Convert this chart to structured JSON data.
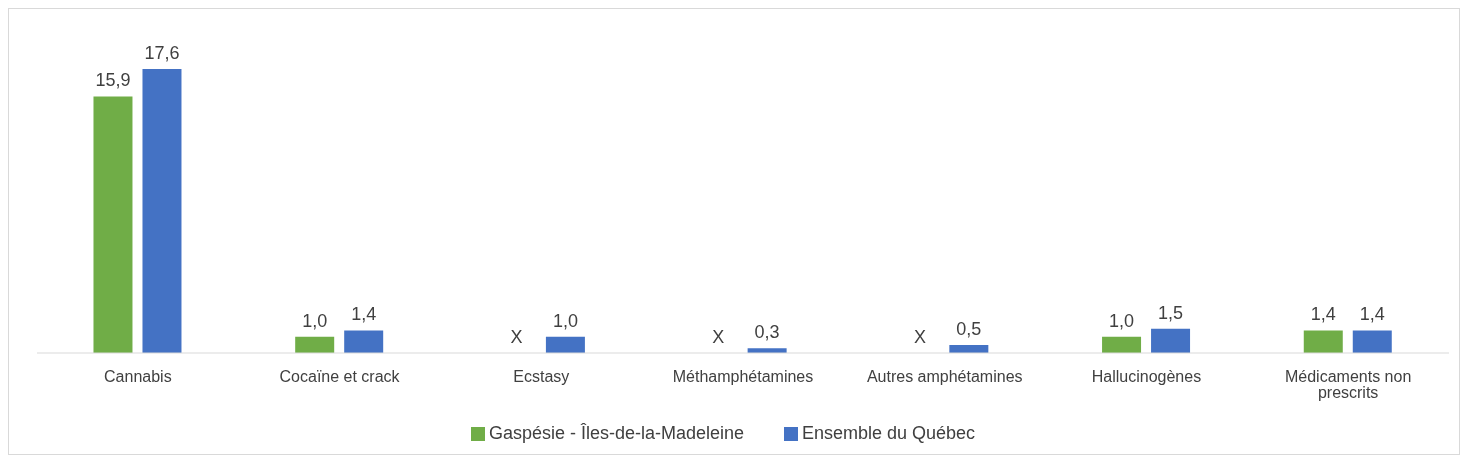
{
  "chart_data": {
    "type": "bar",
    "categories": [
      "Cannabis",
      "Cocaïne et crack",
      "Ecstasy",
      "Méthamphétamines",
      "Autres amphétamines",
      "Hallucinogènes",
      "Médicaments non prescrits"
    ],
    "series": [
      {
        "name": "Gaspésie - Îles-de-la-Madeleine",
        "color": "#70ad47",
        "values": [
          15.9,
          1.0,
          null,
          null,
          null,
          1.0,
          1.4
        ],
        "value_labels": [
          "15,9",
          "1,0",
          "X",
          "X",
          "X",
          "1,0",
          "1,4"
        ]
      },
      {
        "name": "Ensemble du Québec",
        "color": "#4472c4",
        "values": [
          17.6,
          1.4,
          1.0,
          0.3,
          0.5,
          1.5,
          1.4
        ],
        "value_labels": [
          "17,6",
          "1,4",
          "1,0",
          "0,3",
          "0,5",
          "1,5",
          "1,4"
        ]
      }
    ],
    "legend": "bottom",
    "grid": false
  }
}
